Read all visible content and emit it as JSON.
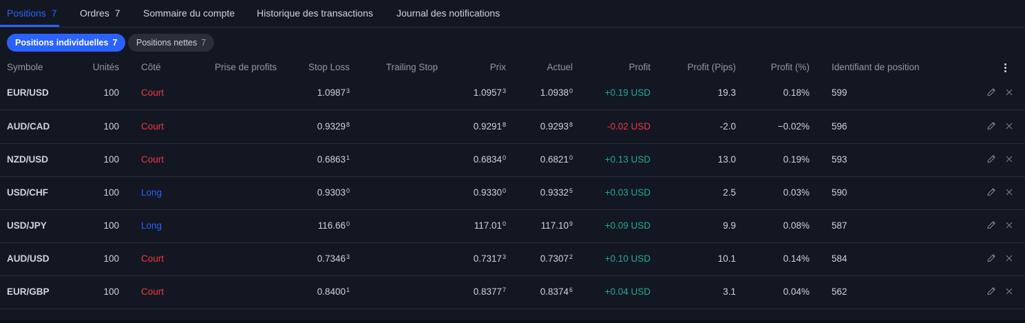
{
  "tabs": [
    {
      "label": "Positions",
      "count": "7"
    },
    {
      "label": "Ordres",
      "count": "7"
    },
    {
      "label": "Sommaire du compte",
      "count": ""
    },
    {
      "label": "Historique des transactions",
      "count": ""
    },
    {
      "label": "Journal des notifications",
      "count": ""
    }
  ],
  "subtabs": [
    {
      "label": "Positions individuelles",
      "count": "7"
    },
    {
      "label": "Positions nettes",
      "count": "7"
    }
  ],
  "columns": [
    "Symbole",
    "Unités",
    "Côté",
    "Prise de profits",
    "Stop Loss",
    "Trailing Stop",
    "Prix",
    "Actuel",
    "Profit",
    "Profit (Pips)",
    "Profit (%)",
    "Identifiant de position"
  ],
  "rows": [
    {
      "symbol": "EUR/USD",
      "units": "100",
      "side": "Court",
      "side_type": "short",
      "take_profit": "",
      "stop_loss": "1.0987",
      "stop_loss_pip": "3",
      "trailing_stop": "",
      "price": "1.0957",
      "price_pip": "3",
      "current": "1.0938",
      "current_pip": "0",
      "profit": "+0.19 USD",
      "profit_sign": "pos",
      "pips": "19.3",
      "pct": "0.18%",
      "id": "599"
    },
    {
      "symbol": "AUD/CAD",
      "units": "100",
      "side": "Court",
      "side_type": "short",
      "take_profit": "",
      "stop_loss": "0.9329",
      "stop_loss_pip": "8",
      "trailing_stop": "",
      "price": "0.9291",
      "price_pip": "8",
      "current": "0.9293",
      "current_pip": "8",
      "profit": "-0.02 USD",
      "profit_sign": "neg",
      "pips": "-2.0",
      "pct": "−0.02%",
      "id": "596"
    },
    {
      "symbol": "NZD/USD",
      "units": "100",
      "side": "Court",
      "side_type": "short",
      "take_profit": "",
      "stop_loss": "0.6863",
      "stop_loss_pip": "1",
      "trailing_stop": "",
      "price": "0.6834",
      "price_pip": "0",
      "current": "0.6821",
      "current_pip": "0",
      "profit": "+0.13 USD",
      "profit_sign": "pos",
      "pips": "13.0",
      "pct": "0.19%",
      "id": "593"
    },
    {
      "symbol": "USD/CHF",
      "units": "100",
      "side": "Long",
      "side_type": "long",
      "take_profit": "",
      "stop_loss": "0.9303",
      "stop_loss_pip": "0",
      "trailing_stop": "",
      "price": "0.9330",
      "price_pip": "0",
      "current": "0.9332",
      "current_pip": "5",
      "profit": "+0.03 USD",
      "profit_sign": "pos",
      "pips": "2.5",
      "pct": "0.03%",
      "id": "590"
    },
    {
      "symbol": "USD/JPY",
      "units": "100",
      "side": "Long",
      "side_type": "long",
      "take_profit": "",
      "stop_loss": "116.66",
      "stop_loss_pip": "0",
      "trailing_stop": "",
      "price": "117.01",
      "price_pip": "0",
      "current": "117.10",
      "current_pip": "9",
      "profit": "+0.09 USD",
      "profit_sign": "pos",
      "pips": "9.9",
      "pct": "0.08%",
      "id": "587"
    },
    {
      "symbol": "AUD/USD",
      "units": "100",
      "side": "Court",
      "side_type": "short",
      "take_profit": "",
      "stop_loss": "0.7346",
      "stop_loss_pip": "3",
      "trailing_stop": "",
      "price": "0.7317",
      "price_pip": "3",
      "current": "0.7307",
      "current_pip": "2",
      "profit": "+0.10 USD",
      "profit_sign": "pos",
      "pips": "10.1",
      "pct": "0.14%",
      "id": "584"
    },
    {
      "symbol": "EUR/GBP",
      "units": "100",
      "side": "Court",
      "side_type": "short",
      "take_profit": "",
      "stop_loss": "0.8400",
      "stop_loss_pip": "1",
      "trailing_stop": "",
      "price": "0.8377",
      "price_pip": "7",
      "current": "0.8374",
      "current_pip": "6",
      "profit": "+0.04 USD",
      "profit_sign": "pos",
      "pips": "3.1",
      "pct": "0.04%",
      "id": "562"
    }
  ],
  "icons": {
    "menu": "kebab-menu-icon",
    "edit": "pencil-icon",
    "close": "close-icon"
  },
  "colors": {
    "accent": "#2962ff",
    "short": "#f23645",
    "long": "#2962ff",
    "profit_positive": "#22ab94",
    "profit_negative": "#f23645",
    "background": "#131722"
  }
}
